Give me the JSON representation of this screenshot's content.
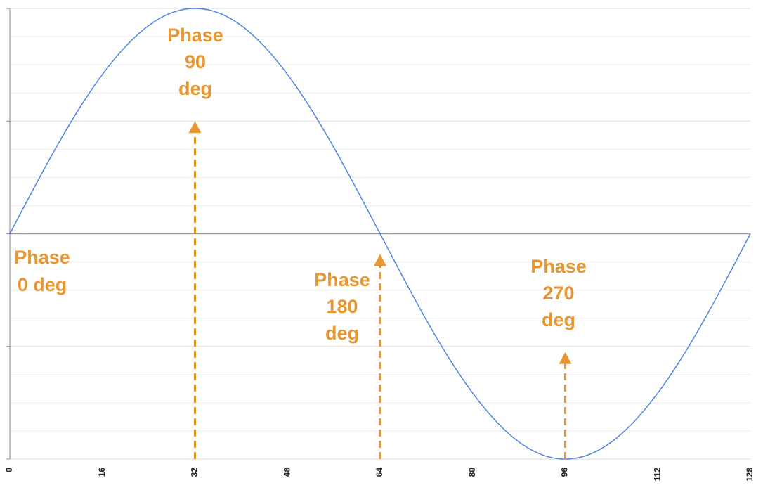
{
  "chart_data": {
    "type": "line",
    "x": [
      0,
      4,
      8,
      12,
      16,
      20,
      24,
      28,
      32,
      36,
      40,
      44,
      48,
      52,
      56,
      60,
      64,
      68,
      72,
      76,
      80,
      84,
      88,
      92,
      96,
      100,
      104,
      108,
      112,
      116,
      120,
      124,
      128
    ],
    "series": [
      {
        "color": "#4f84e3",
        "values": [
          0,
          0.195,
          0.383,
          0.556,
          0.707,
          0.831,
          0.924,
          0.981,
          1,
          0.981,
          0.924,
          0.831,
          0.707,
          0.556,
          0.383,
          0.195,
          0,
          -0.195,
          -0.383,
          -0.556,
          -0.707,
          -0.831,
          -0.924,
          -0.981,
          -1,
          -0.981,
          -0.924,
          -0.831,
          -0.707,
          -0.556,
          -0.383,
          -0.195,
          0
        ]
      }
    ],
    "xlim": [
      0,
      128
    ],
    "xticks": [
      0,
      16,
      32,
      48,
      64,
      80,
      96,
      112,
      128
    ],
    "ylim": [
      -1,
      1
    ],
    "yticks": [
      -1,
      -0.5,
      0,
      0.5,
      1
    ],
    "yminor": [
      -0.875,
      -0.75,
      -0.625,
      -0.375,
      -0.25,
      -0.125,
      0.125,
      0.25,
      0.375,
      0.625,
      0.75,
      0.875
    ],
    "grid": true,
    "annotation_color": "#e8962f",
    "annotations": [
      {
        "lines": [
          "Phase",
          "0 deg"
        ],
        "x": 0
      },
      {
        "lines": [
          "Phase",
          "90",
          "deg"
        ],
        "x": 32,
        "arrow_tip": 0.5
      },
      {
        "lines": [
          "Phase",
          "180",
          "deg"
        ],
        "x": 64,
        "arrow_tip": -0.09
      },
      {
        "lines": [
          "Phase",
          "270",
          "deg"
        ],
        "x": 96,
        "arrow_tip": -0.525
      }
    ]
  }
}
